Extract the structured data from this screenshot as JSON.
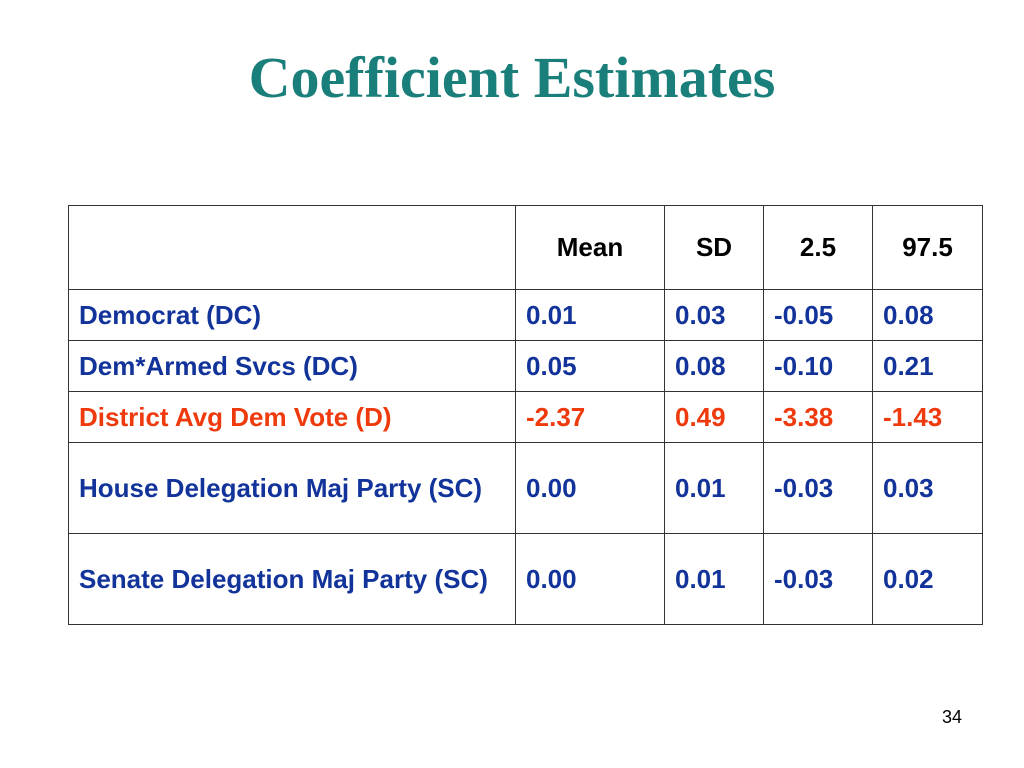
{
  "slide": {
    "title": "Coefficient Estimates",
    "page_number": "34"
  },
  "table": {
    "headers": [
      "",
      "Mean",
      "SD",
      "2.5",
      "97.5"
    ],
    "rows": [
      {
        "label": "Democrat (DC)",
        "mean": "0.01",
        "sd": "0.03",
        "lo": "-0.05",
        "hi": "0.08"
      },
      {
        "label": "Dem*Armed Svcs (DC)",
        "mean": "0.05",
        "sd": "0.08",
        "lo": "-0.10",
        "hi": "0.21"
      },
      {
        "label": "District Avg Dem Vote (D)",
        "mean": "-2.37",
        "sd": "0.49",
        "lo": "-3.38",
        "hi": "-1.43"
      },
      {
        "label": "House Delegation Maj Party (SC)",
        "mean": "0.00",
        "sd": "0.01",
        "lo": "-0.03",
        "hi": "0.03"
      },
      {
        "label": "Senate Delegation Maj Party (SC)",
        "mean": "0.00",
        "sd": "0.01",
        "lo": "-0.03",
        "hi": "0.02"
      }
    ]
  },
  "colors": {
    "title": "#1a7f7a",
    "row_text": "#12339a",
    "highlight_text": "#ee3a0d",
    "header_text": "#000000"
  }
}
